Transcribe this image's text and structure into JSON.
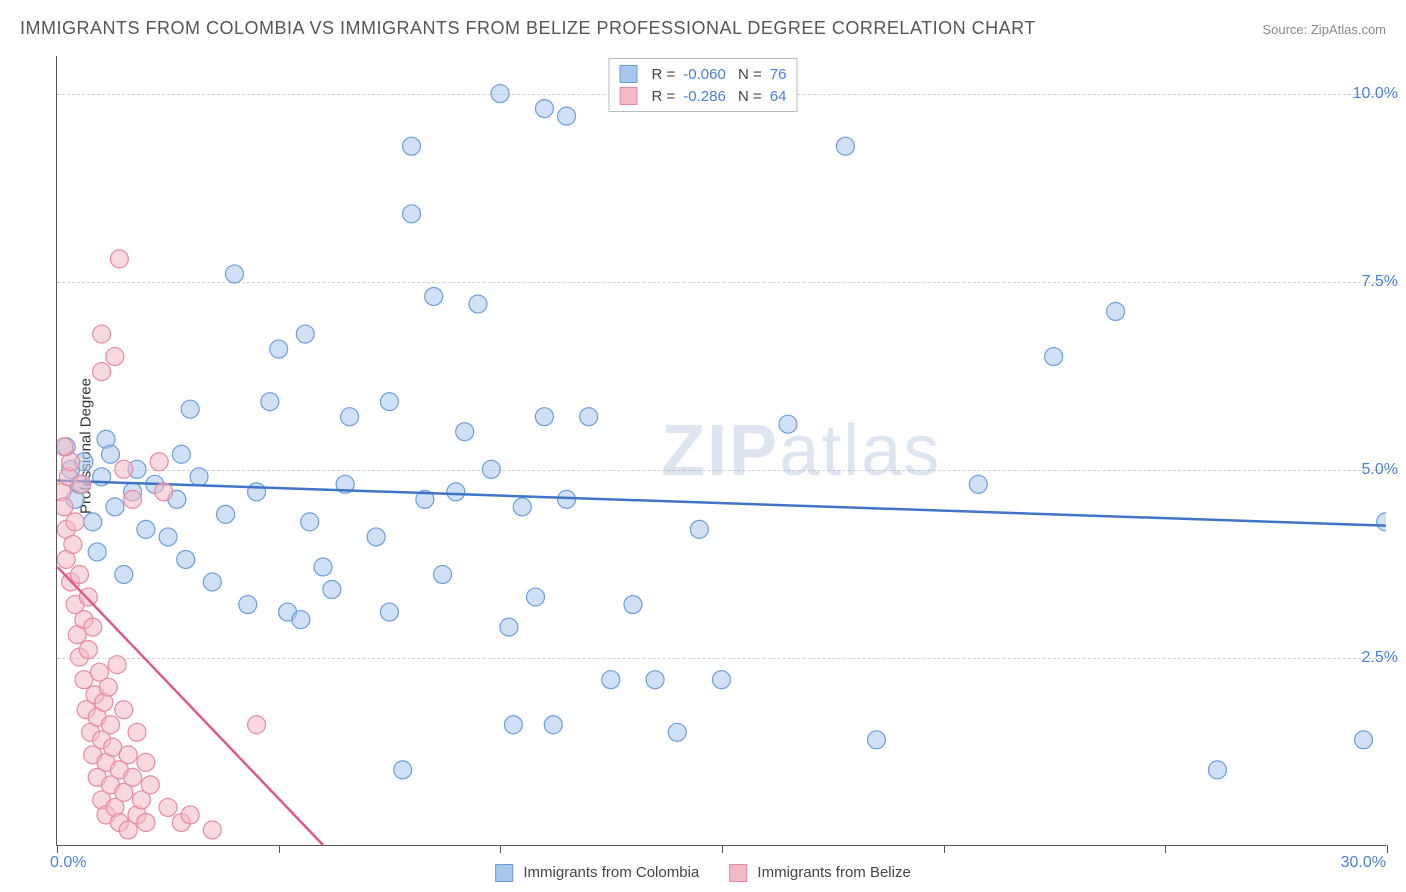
{
  "title": "IMMIGRANTS FROM COLOMBIA VS IMMIGRANTS FROM BELIZE PROFESSIONAL DEGREE CORRELATION CHART",
  "source": "Source: ZipAtlas.com",
  "y_axis_label": "Professional Degree",
  "watermark": {
    "part1": "ZIP",
    "part2": "atlas"
  },
  "chart": {
    "type": "scatter",
    "background_color": "#ffffff",
    "grid_color": "#d0d0d0",
    "axis_color": "#555555",
    "xlim": [
      0,
      30
    ],
    "ylim": [
      0,
      10.5
    ],
    "x_ticks": [
      0,
      5,
      10,
      15,
      20,
      25,
      30
    ],
    "x_tick_labels": {
      "0": "0.0%",
      "30": "30.0%"
    },
    "y_ticks": [
      2.5,
      5.0,
      7.5,
      10.0
    ],
    "y_tick_labels": [
      "2.5%",
      "5.0%",
      "7.5%",
      "10.0%"
    ],
    "marker_radius": 9,
    "marker_opacity": 0.55,
    "line_width": 2.5,
    "title_fontsize": 18,
    "tick_fontsize": 16,
    "tick_color": "#4a7fd8"
  },
  "series": [
    {
      "name": "Immigrants from Colombia",
      "color_fill": "#a9c6ed",
      "color_stroke": "#6d9ddb",
      "line_color": "#3f74c8",
      "R": "-0.060",
      "N": "76",
      "trend": {
        "x1": 0,
        "y1": 4.85,
        "x2": 30,
        "y2": 4.25
      },
      "points": [
        [
          0.2,
          5.3
        ],
        [
          0.3,
          5.0
        ],
        [
          0.4,
          4.6
        ],
        [
          0.5,
          4.8
        ],
        [
          0.6,
          5.1
        ],
        [
          0.8,
          4.3
        ],
        [
          1.0,
          4.9
        ],
        [
          1.1,
          5.4
        ],
        [
          1.3,
          4.5
        ],
        [
          1.5,
          3.6
        ],
        [
          1.7,
          4.7
        ],
        [
          1.8,
          5.0
        ],
        [
          2.0,
          4.2
        ],
        [
          2.2,
          4.8
        ],
        [
          2.5,
          4.1
        ],
        [
          2.7,
          4.6
        ],
        [
          2.9,
          3.8
        ],
        [
          3.0,
          5.8
        ],
        [
          3.2,
          4.9
        ],
        [
          3.5,
          3.5
        ],
        [
          3.8,
          4.4
        ],
        [
          4.0,
          7.6
        ],
        [
          4.3,
          3.2
        ],
        [
          4.5,
          4.7
        ],
        [
          4.8,
          5.9
        ],
        [
          5.0,
          6.6
        ],
        [
          5.2,
          3.1
        ],
        [
          5.5,
          3.0
        ],
        [
          5.7,
          4.3
        ],
        [
          5.6,
          6.8
        ],
        [
          6.2,
          3.4
        ],
        [
          6.5,
          4.8
        ],
        [
          6.6,
          5.7
        ],
        [
          7.2,
          4.1
        ],
        [
          7.5,
          5.9
        ],
        [
          7.5,
          3.1
        ],
        [
          7.8,
          1.0
        ],
        [
          8.0,
          9.3
        ],
        [
          8.0,
          8.4
        ],
        [
          8.3,
          4.6
        ],
        [
          8.5,
          7.3
        ],
        [
          8.7,
          3.6
        ],
        [
          9.0,
          4.7
        ],
        [
          9.2,
          5.5
        ],
        [
          9.5,
          7.2
        ],
        [
          9.8,
          5.0
        ],
        [
          10.0,
          10.0
        ],
        [
          10.2,
          2.9
        ],
        [
          10.3,
          1.6
        ],
        [
          10.5,
          4.5
        ],
        [
          10.8,
          3.3
        ],
        [
          11.0,
          5.7
        ],
        [
          11.0,
          9.8
        ],
        [
          11.2,
          1.6
        ],
        [
          11.5,
          4.6
        ],
        [
          11.5,
          9.7
        ],
        [
          12.0,
          5.7
        ],
        [
          12.5,
          2.2
        ],
        [
          13.0,
          3.2
        ],
        [
          13.5,
          2.2
        ],
        [
          14.0,
          1.5
        ],
        [
          14.5,
          4.2
        ],
        [
          15.0,
          2.2
        ],
        [
          16.5,
          5.6
        ],
        [
          17.8,
          9.3
        ],
        [
          18.5,
          1.4
        ],
        [
          20.8,
          4.8
        ],
        [
          22.5,
          6.5
        ],
        [
          23.9,
          7.1
        ],
        [
          26.2,
          1.0
        ],
        [
          29.5,
          1.4
        ],
        [
          30.0,
          4.3
        ],
        [
          0.9,
          3.9
        ],
        [
          1.2,
          5.2
        ],
        [
          2.8,
          5.2
        ],
        [
          6.0,
          3.7
        ]
      ]
    },
    {
      "name": "Immigrants from Belize",
      "color_fill": "#f2b9c7",
      "color_stroke": "#e68aa2",
      "line_color": "#e05a7d",
      "R": "-0.286",
      "N": "64",
      "trend": {
        "x1": 0,
        "y1": 3.7,
        "x2": 6.0,
        "y2": 0
      },
      "points": [
        [
          0.1,
          4.7
        ],
        [
          0.15,
          4.5
        ],
        [
          0.2,
          4.2
        ],
        [
          0.2,
          3.8
        ],
        [
          0.25,
          4.9
        ],
        [
          0.3,
          3.5
        ],
        [
          0.3,
          5.1
        ],
        [
          0.35,
          4.0
        ],
        [
          0.4,
          3.2
        ],
        [
          0.4,
          4.3
        ],
        [
          0.45,
          2.8
        ],
        [
          0.5,
          3.6
        ],
        [
          0.5,
          2.5
        ],
        [
          0.55,
          4.8
        ],
        [
          0.6,
          2.2
        ],
        [
          0.6,
          3.0
        ],
        [
          0.65,
          1.8
        ],
        [
          0.7,
          2.6
        ],
        [
          0.7,
          3.3
        ],
        [
          0.75,
          1.5
        ],
        [
          0.8,
          2.9
        ],
        [
          0.8,
          1.2
        ],
        [
          0.85,
          2.0
        ],
        [
          0.9,
          1.7
        ],
        [
          0.9,
          0.9
        ],
        [
          0.95,
          2.3
        ],
        [
          1.0,
          1.4
        ],
        [
          1.0,
          0.6
        ],
        [
          1.05,
          1.9
        ],
        [
          1.1,
          1.1
        ],
        [
          1.1,
          0.4
        ],
        [
          1.15,
          2.1
        ],
        [
          1.2,
          1.6
        ],
        [
          1.2,
          0.8
        ],
        [
          1.25,
          1.3
        ],
        [
          1.3,
          0.5
        ],
        [
          1.35,
          2.4
        ],
        [
          1.4,
          1.0
        ],
        [
          1.4,
          0.3
        ],
        [
          1.5,
          1.8
        ],
        [
          1.5,
          0.7
        ],
        [
          1.6,
          1.2
        ],
        [
          1.6,
          0.2
        ],
        [
          1.7,
          0.9
        ],
        [
          1.8,
          1.5
        ],
        [
          1.8,
          0.4
        ],
        [
          1.9,
          0.6
        ],
        [
          2.0,
          1.1
        ],
        [
          2.0,
          0.3
        ],
        [
          2.1,
          0.8
        ],
        [
          2.3,
          5.1
        ],
        [
          2.4,
          4.7
        ],
        [
          2.5,
          0.5
        ],
        [
          2.8,
          0.3
        ],
        [
          3.0,
          0.4
        ],
        [
          3.5,
          0.2
        ],
        [
          4.5,
          1.6
        ],
        [
          1.0,
          6.8
        ],
        [
          1.0,
          6.3
        ],
        [
          1.3,
          6.5
        ],
        [
          1.5,
          5.0
        ],
        [
          1.7,
          4.6
        ],
        [
          1.4,
          7.8
        ],
        [
          0.15,
          5.3
        ]
      ]
    }
  ],
  "bottom_legend": [
    {
      "label": "Immigrants from Colombia",
      "fill": "#a9c6ed",
      "stroke": "#6d9ddb"
    },
    {
      "label": "Immigrants from Belize",
      "fill": "#f2b9c7",
      "stroke": "#e68aa2"
    }
  ]
}
